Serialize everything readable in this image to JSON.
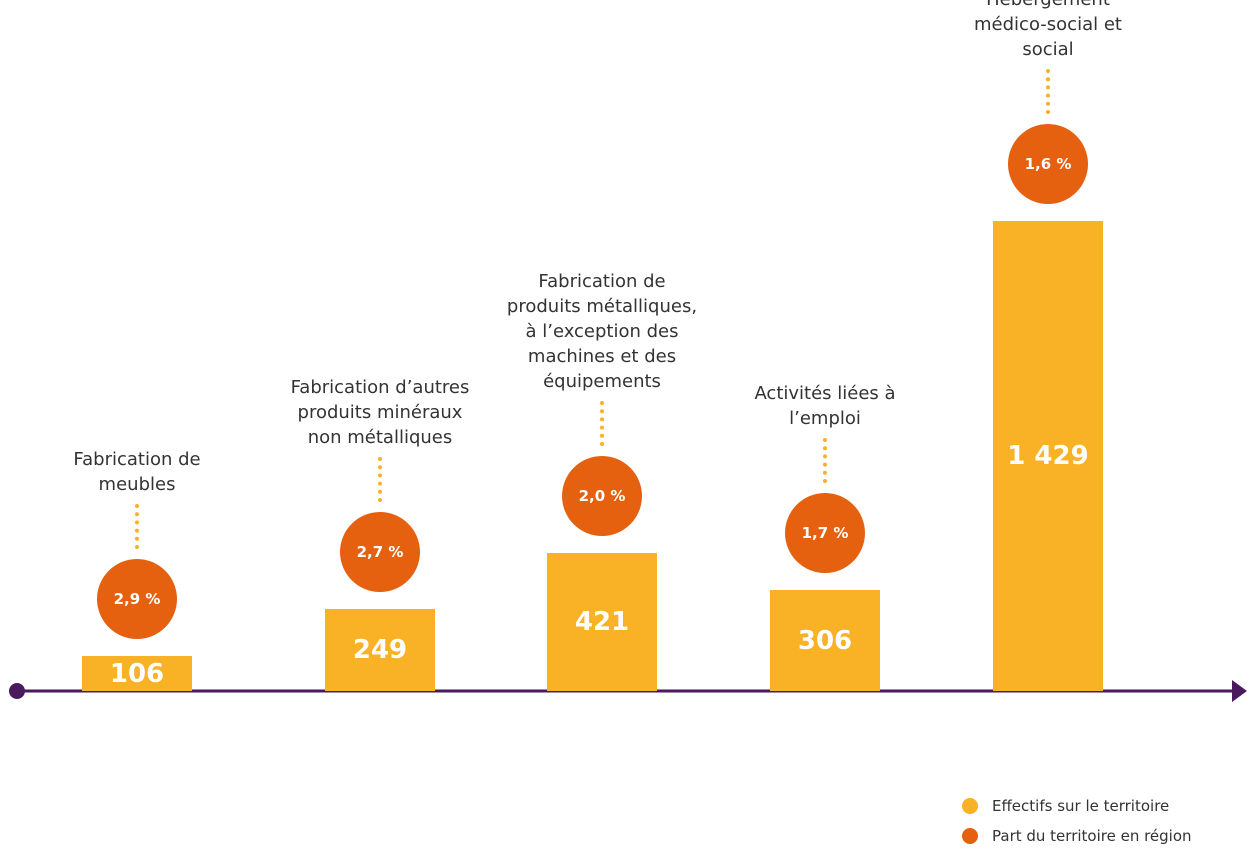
{
  "chart_data": {
    "type": "bar",
    "categories": [
      "Fabrication de meubles",
      "Fabrication d’autres produits minéraux non métalliques",
      "Fabrication de produits métalliques, à l’exception des machines et des équipements",
      "Activités liées à l’emploi",
      "Hébergement médico-social et social"
    ],
    "series": [
      {
        "name": "Effectifs sur le territoire",
        "color": "#f9b126",
        "values": [
          106,
          249,
          421,
          306,
          1429
        ],
        "value_labels": [
          "106",
          "249",
          "421",
          "306",
          "1 429"
        ]
      },
      {
        "name": "Part du territoire en région",
        "color": "#e5600f",
        "values": [
          2.9,
          2.7,
          2.0,
          1.7,
          1.6
        ],
        "value_labels": [
          "2,9 %",
          "2,7 %",
          "2,0 %",
          "1,7 %",
          "1,6 %"
        ]
      }
    ],
    "axis_color": "#4b1a5e"
  }
}
